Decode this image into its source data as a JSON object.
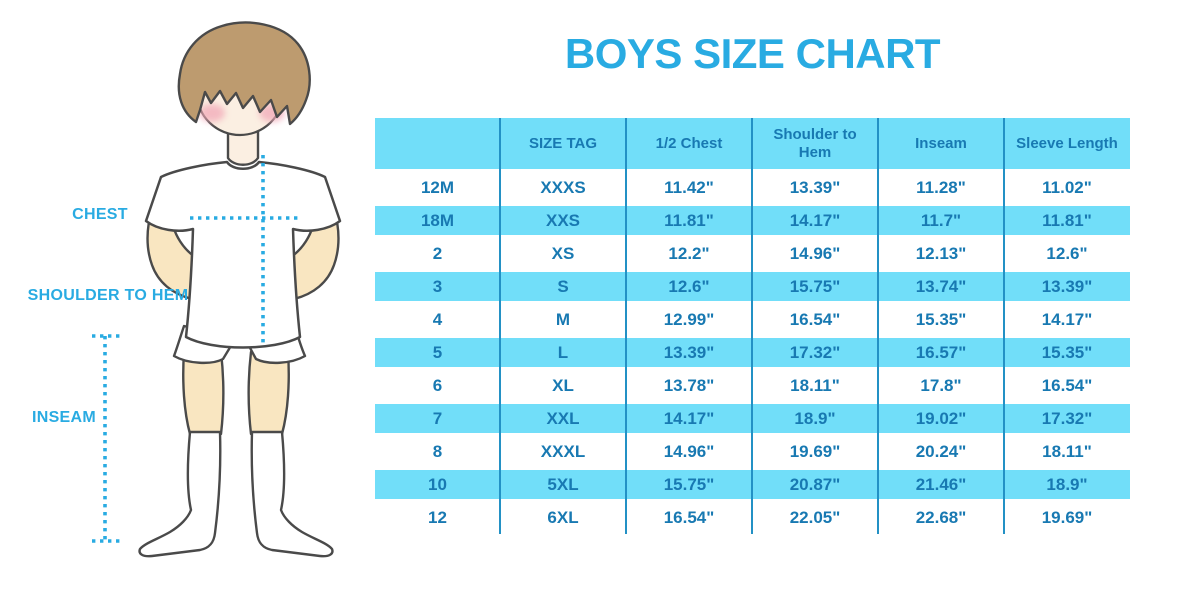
{
  "title": "BOYS SIZE CHART",
  "figure": {
    "labels": {
      "chest": "CHEST",
      "shoulder_to_hem": "SHOULDER TO HEM",
      "inseam": "INSEAM"
    }
  },
  "colors": {
    "background": "#FFFFFF",
    "accent": "#29ABE2",
    "table_fill": "#71DEF9",
    "table_text": "#1879B2",
    "divider": "#2391C5",
    "outline": "#4A4A4A",
    "skin": "#F9E6C1",
    "face": "#FBEFE2",
    "hair": "#BD9B6F",
    "cheek": "#F2A9B8"
  },
  "chart_data": {
    "type": "table",
    "title": "BOYS SIZE CHART",
    "columns": [
      "",
      "SIZE TAG",
      "1/2 Chest",
      "Shoulder to Hem",
      "Inseam",
      "Sleeve Length"
    ],
    "rows": [
      [
        "12M",
        "XXXS",
        "11.42\"",
        "13.39\"",
        "11.28\"",
        "11.02\""
      ],
      [
        "18M",
        "XXS",
        "11.81\"",
        "14.17\"",
        "11.7\"",
        "11.81\""
      ],
      [
        "2",
        "XS",
        "12.2\"",
        "14.96\"",
        "12.13\"",
        "12.6\""
      ],
      [
        "3",
        "S",
        "12.6\"",
        "15.75\"",
        "13.74\"",
        "13.39\""
      ],
      [
        "4",
        "M",
        "12.99\"",
        "16.54\"",
        "15.35\"",
        "14.17\""
      ],
      [
        "5",
        "L",
        "13.39\"",
        "17.32\"",
        "16.57\"",
        "15.35\""
      ],
      [
        "6",
        "XL",
        "13.78\"",
        "18.11\"",
        "17.8\"",
        "16.54\""
      ],
      [
        "7",
        "XXL",
        "14.17\"",
        "18.9\"",
        "19.02\"",
        "17.32\""
      ],
      [
        "8",
        "XXXL",
        "14.96\"",
        "19.69\"",
        "20.24\"",
        "18.11\""
      ],
      [
        "10",
        "5XL",
        "15.75\"",
        "20.87\"",
        "21.46\"",
        "18.9\""
      ],
      [
        "12",
        "6XL",
        "16.54\"",
        "22.05\"",
        "22.68\"",
        "19.69\""
      ]
    ]
  }
}
